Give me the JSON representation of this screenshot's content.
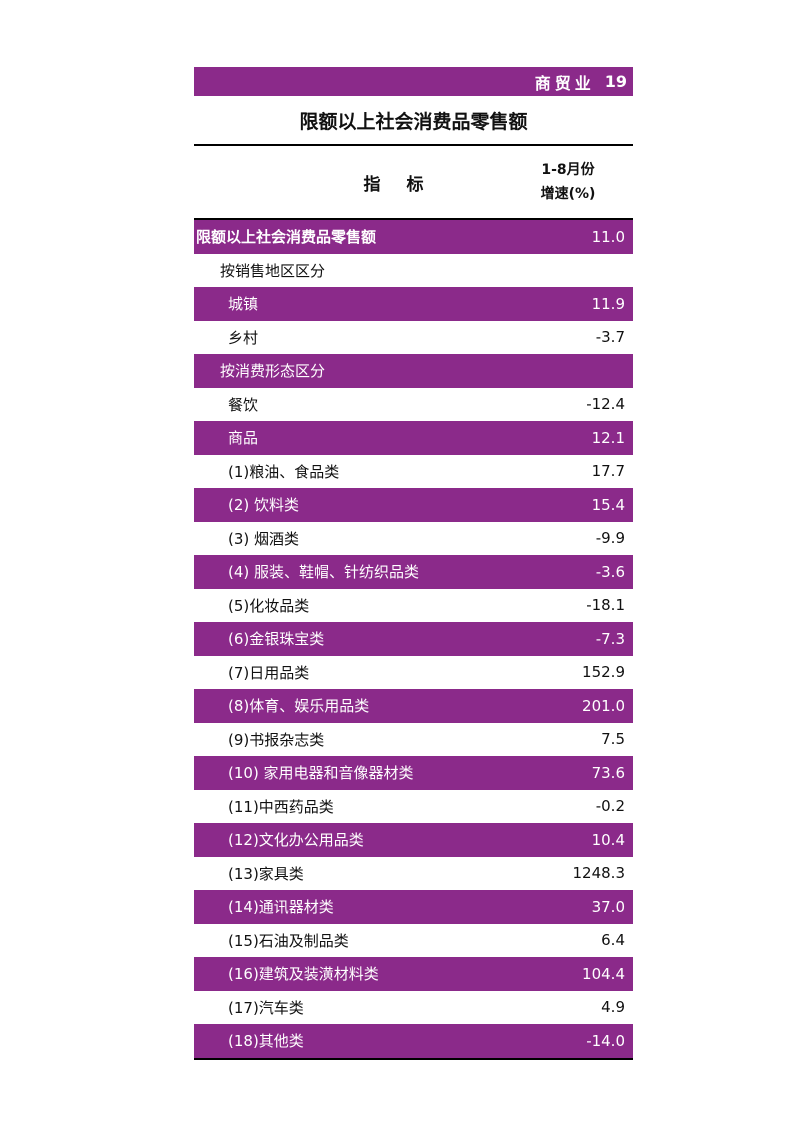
{
  "header": {
    "section": "商贸业",
    "page_number": "19"
  },
  "title": "限额以上社会消费品零售额",
  "columns": {
    "indicator": "指 标",
    "growth_line1": "1-8月份",
    "growth_line2": "增速(%)"
  },
  "rows": [
    {
      "label": "限额以上社会消费品零售额",
      "value": "11.0",
      "level": 0,
      "shaded": true
    },
    {
      "label": "按销售地区区分",
      "value": "",
      "level": 1,
      "shaded": false
    },
    {
      "label": "城镇",
      "value": "11.9",
      "level": 2,
      "shaded": true
    },
    {
      "label": "乡村",
      "value": "-3.7",
      "level": 2,
      "shaded": false
    },
    {
      "label": "按消费形态区分",
      "value": "",
      "level": 1,
      "shaded": true
    },
    {
      "label": "餐饮",
      "value": "-12.4",
      "level": 2,
      "shaded": false
    },
    {
      "label": "商品",
      "value": "12.1",
      "level": 2,
      "shaded": true
    },
    {
      "label": "(1)粮油、食品类",
      "value": "17.7",
      "level": 2,
      "shaded": false
    },
    {
      "label": "(2) 饮料类",
      "value": "15.4",
      "level": 2,
      "shaded": true
    },
    {
      "label": "(3) 烟酒类",
      "value": "-9.9",
      "level": 2,
      "shaded": false
    },
    {
      "label": "(4) 服装、鞋帽、针纺织品类",
      "value": "-3.6",
      "level": 2,
      "shaded": true
    },
    {
      "label": "(5)化妆品类",
      "value": "-18.1",
      "level": 2,
      "shaded": false
    },
    {
      "label": "(6)金银珠宝类",
      "value": "-7.3",
      "level": 2,
      "shaded": true
    },
    {
      "label": "(7)日用品类",
      "value": "152.9",
      "level": 2,
      "shaded": false
    },
    {
      "label": "(8)体育、娱乐用品类",
      "value": "201.0",
      "level": 2,
      "shaded": true
    },
    {
      "label": "(9)书报杂志类",
      "value": "7.5",
      "level": 2,
      "shaded": false
    },
    {
      "label": "(10) 家用电器和音像器材类",
      "value": "73.6",
      "level": 2,
      "shaded": true
    },
    {
      "label": "(11)中西药品类",
      "value": "-0.2",
      "level": 2,
      "shaded": false
    },
    {
      "label": "(12)文化办公用品类",
      "value": "10.4",
      "level": 2,
      "shaded": true
    },
    {
      "label": "(13)家具类",
      "value": "1248.3",
      "level": 2,
      "shaded": false
    },
    {
      "label": "(14)通讯器材类",
      "value": "37.0",
      "level": 2,
      "shaded": true
    },
    {
      "label": "(15)石油及制品类",
      "value": "6.4",
      "level": 2,
      "shaded": false
    },
    {
      "label": "(16)建筑及装潢材料类",
      "value": "104.4",
      "level": 2,
      "shaded": true
    },
    {
      "label": "(17)汽车类",
      "value": "4.9",
      "level": 2,
      "shaded": false
    },
    {
      "label": "(18)其他类",
      "value": "-14.0",
      "level": 2,
      "shaded": true
    }
  ],
  "colors": {
    "accent": "#8b2a8a"
  }
}
